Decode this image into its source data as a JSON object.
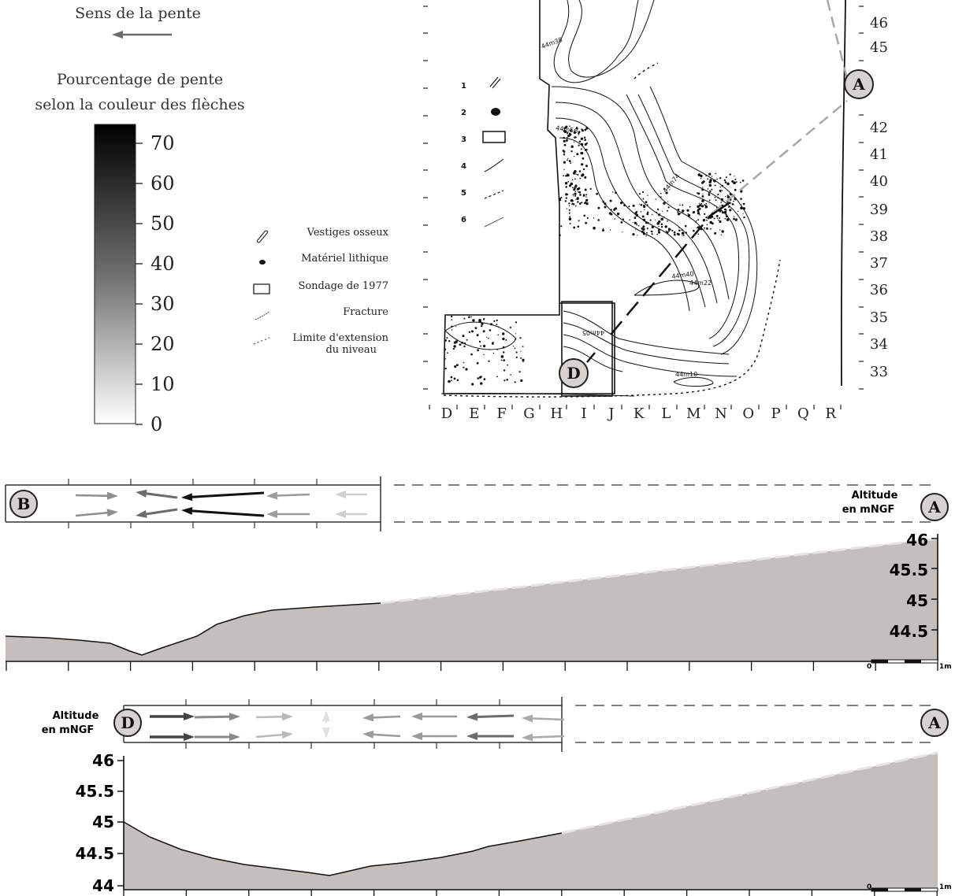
{
  "slope_direction": {
    "label": "Sens de la pente",
    "arrow_color": "#6b6b6b"
  },
  "percent_legend": {
    "title_line1": "Pourcentage de pente",
    "title_line2": "selon la couleur des flèches",
    "ticks": [
      "70",
      "60",
      "50",
      "40",
      "30",
      "20",
      "10",
      "0"
    ]
  },
  "symbol_legend": {
    "numbers": [
      "1",
      "2",
      "3",
      "4",
      "5",
      "6"
    ],
    "items": [
      {
        "label": "Vestiges osseux",
        "icon": "bone-icon"
      },
      {
        "label": "Matériel lithique",
        "icon": "lithic-icon"
      },
      {
        "label": "Sondage de 1977",
        "icon": "sondage-rectangle-icon"
      },
      {
        "label": "Fracture",
        "icon": "fracture-line-icon"
      },
      {
        "label": "Limite d'extension",
        "label2": "du niveau",
        "icon": "dotted-limit-icon"
      }
    ]
  },
  "site_map": {
    "columns": [
      "D",
      "E",
      "F",
      "G",
      "H",
      "I",
      "J",
      "K",
      "L",
      "M",
      "N",
      "O",
      "P",
      "Q",
      "R"
    ],
    "rows": [
      "46",
      "45",
      "42",
      "41",
      "40",
      "39",
      "38",
      "37",
      "36",
      "35",
      "34",
      "33"
    ],
    "contour_labels": [
      "44m38",
      "44m56",
      "44m74",
      "44m40",
      "44m22",
      "44m05",
      "44m10"
    ],
    "markers": {
      "A": "A",
      "D": "D"
    }
  },
  "profile_BA": {
    "start_marker": "B",
    "end_marker": "A",
    "altitude_label_1": "Altitude",
    "altitude_label_2": "en mNGF",
    "y_ticks": [
      "46",
      "45.5",
      "45",
      "44.5"
    ],
    "scale_start": "0",
    "scale_end": "1m"
  },
  "profile_DA": {
    "start_marker": "D",
    "end_marker": "A",
    "altitude_label_1": "Altitude",
    "altitude_label_2": "en mNGF",
    "y_ticks": [
      "46",
      "45.5",
      "45",
      "44.5",
      "44"
    ],
    "scale_start": "0",
    "scale_end": "1m"
  },
  "colors": {
    "profile_fill": "#c3bfbd",
    "marker_fill": "#d6d2d0",
    "ink": "#1a1a1a"
  }
}
